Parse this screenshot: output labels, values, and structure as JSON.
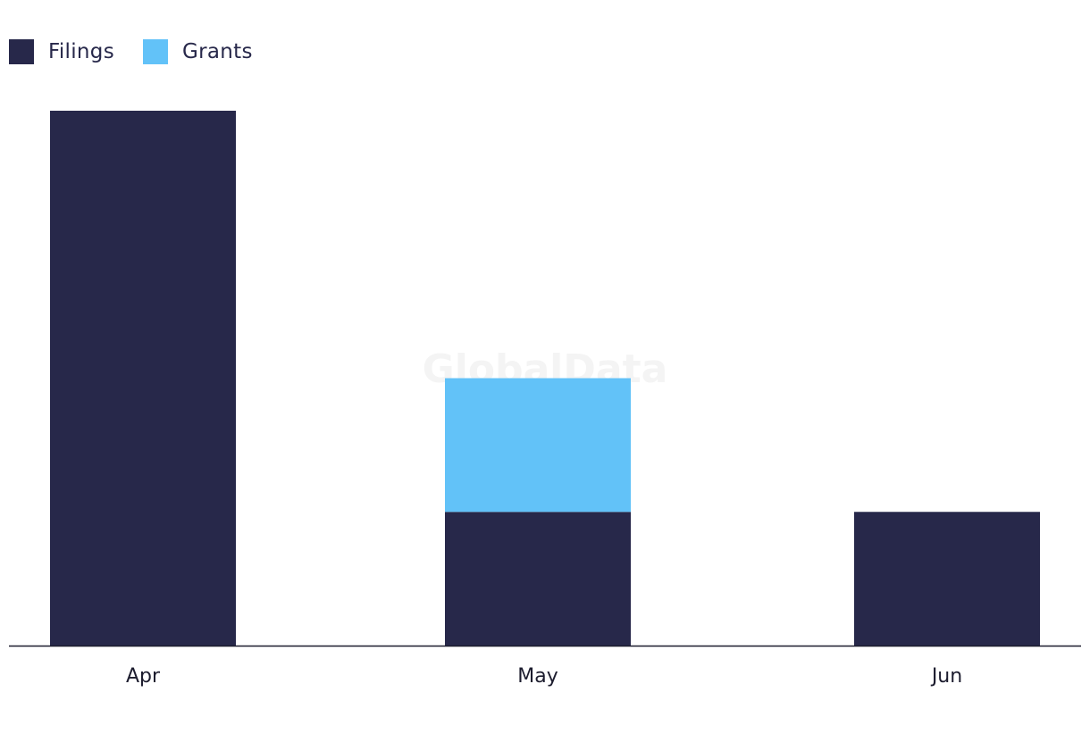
{
  "chart_data": {
    "type": "bar",
    "stacked": true,
    "categories": [
      "Apr",
      "May",
      "Jun"
    ],
    "series": [
      {
        "name": "Filings",
        "color": "#27284a",
        "values": [
          4,
          1,
          1
        ]
      },
      {
        "name": "Grants",
        "color": "#62c2f8",
        "values": [
          0,
          1,
          0
        ]
      }
    ],
    "ylim": [
      0,
      4
    ],
    "legend_position": "top-left",
    "grid": false,
    "watermark": "GlobalData"
  }
}
